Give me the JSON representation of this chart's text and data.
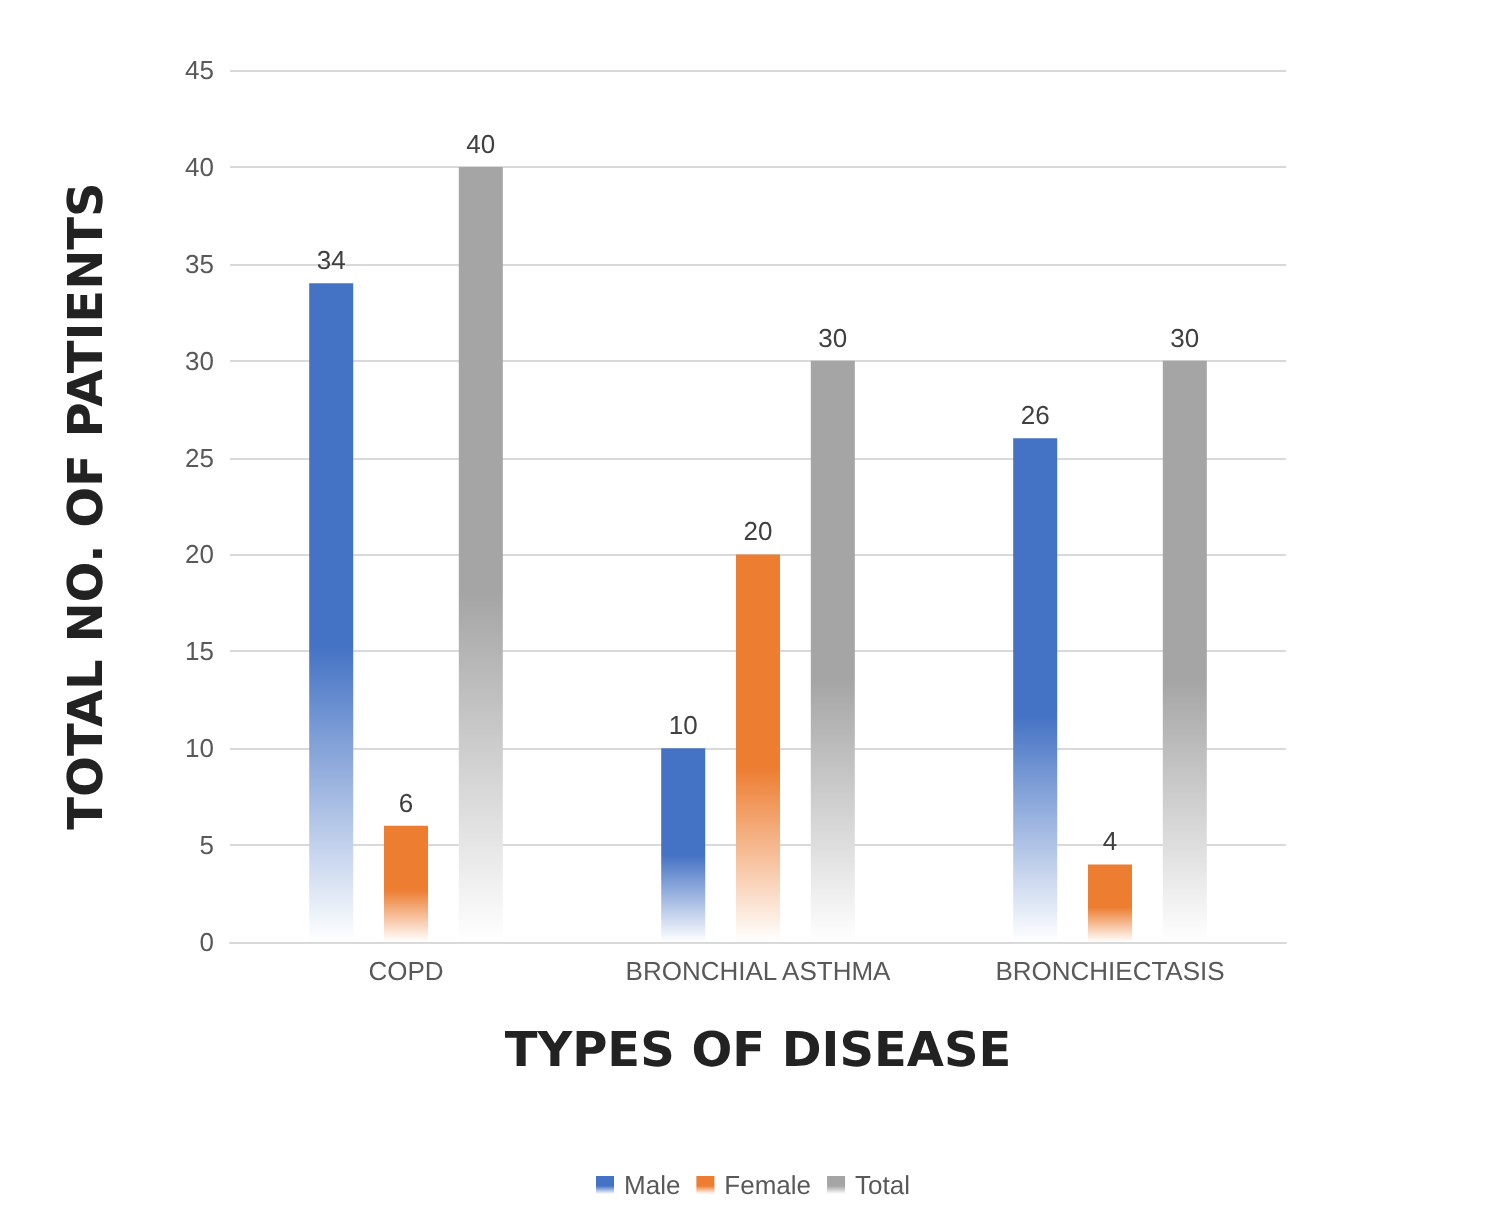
{
  "chart_data": {
    "type": "bar",
    "xlabel": "TYPES OF DISEASE",
    "ylabel": "TOTAL NO. OF PATIENTS",
    "categories": [
      "COPD",
      "BRONCHIAL ASTHMA",
      "BRONCHIECTASIS"
    ],
    "series": [
      {
        "name": "Male",
        "color": "#4472c4",
        "values": [
          34,
          10,
          26
        ]
      },
      {
        "name": "Female",
        "color": "#ed7d31",
        "values": [
          6,
          20,
          4
        ]
      },
      {
        "name": "Total",
        "color": "#a5a5a5",
        "values": [
          40,
          30,
          30
        ]
      }
    ],
    "ylim": [
      0,
      45
    ],
    "yticks": [
      0,
      5,
      10,
      15,
      20,
      25,
      30,
      35,
      40,
      45
    ],
    "grid": "y",
    "legend": "bottom",
    "data_labels": true
  }
}
